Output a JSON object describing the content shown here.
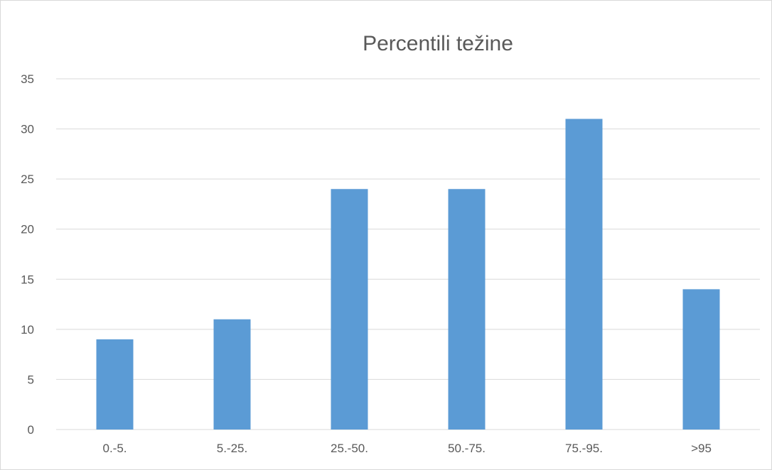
{
  "chart_data": {
    "type": "bar",
    "title": "Percentili težine",
    "xlabel": "",
    "ylabel": "",
    "categories": [
      "0.-5.",
      "5.-25.",
      "25.-50.",
      "50.-75.",
      "75.-95.",
      ">95"
    ],
    "values": [
      9,
      11,
      24,
      24,
      31,
      14
    ],
    "ylim": [
      0,
      35
    ],
    "yticks": [
      0,
      5,
      10,
      15,
      20,
      25,
      30,
      35
    ],
    "grid": true,
    "legend": "none",
    "bar_color": "#5b9bd5",
    "gridline_color": "#d9d9d9",
    "text_color": "#595959"
  }
}
